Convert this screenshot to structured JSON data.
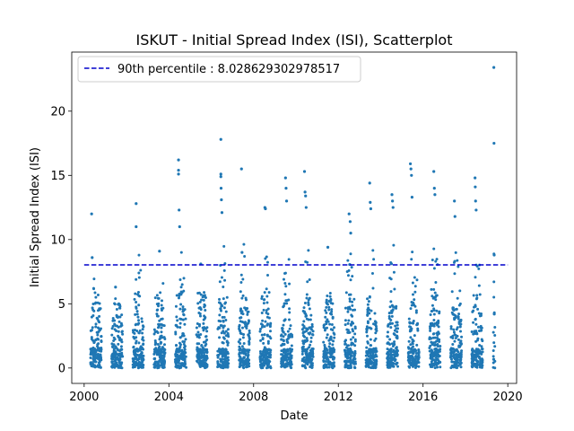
{
  "chart_data": {
    "type": "scatter",
    "title": "ISKUT - Initial Spread Index (ISI), Scatterplot",
    "xlabel": "Date",
    "ylabel": "Initial Spread Index (ISI)",
    "x_range": [
      "1999-06-01",
      "2020-06-01"
    ],
    "y_range": [
      -1.2,
      24.6
    ],
    "x_ticks": [
      {
        "date": "2000-01-01",
        "label": "2000"
      },
      {
        "date": "2004-01-01",
        "label": "2004"
      },
      {
        "date": "2008-01-01",
        "label": "2008"
      },
      {
        "date": "2012-01-01",
        "label": "2012"
      },
      {
        "date": "2016-01-01",
        "label": "2016"
      },
      {
        "date": "2020-01-01",
        "label": "2020"
      }
    ],
    "y_ticks": [
      0,
      5,
      10,
      15,
      20
    ],
    "grid": false,
    "legend_position": "top-left",
    "legend_label": "90th percentile : 8.028629302978517",
    "reference_line": {
      "value": 8.028629302978517,
      "style": "dashed",
      "color": "#0000cc"
    },
    "point_color": "#1f77b4",
    "seasons": [
      {
        "year": 2000,
        "start": "2000-04-20",
        "end": "2000-10-25",
        "max": 12.0,
        "extremes": [
          [
            0.1,
            12.0
          ],
          [
            0.15,
            8.6
          ]
        ]
      },
      {
        "year": 2001,
        "start": "2001-04-20",
        "end": "2001-10-25",
        "max": 6.3,
        "extremes": [
          [
            0.35,
            6.3
          ]
        ]
      },
      {
        "year": 2002,
        "start": "2002-04-20",
        "end": "2002-10-25",
        "max": 12.8,
        "extremes": [
          [
            0.3,
            12.8
          ],
          [
            0.3,
            11.0
          ]
        ]
      },
      {
        "year": 2003,
        "start": "2003-04-20",
        "end": "2003-10-25",
        "max": 9.1,
        "extremes": [
          [
            0.5,
            9.1
          ]
        ]
      },
      {
        "year": 2004,
        "start": "2004-04-20",
        "end": "2004-10-25",
        "max": 16.2,
        "extremes": [
          [
            0.3,
            16.2
          ],
          [
            0.3,
            15.4
          ],
          [
            0.3,
            15.1
          ],
          [
            0.35,
            12.3
          ],
          [
            0.4,
            11.0
          ]
        ]
      },
      {
        "year": 2005,
        "start": "2005-04-20",
        "end": "2005-10-25",
        "max": 8.1,
        "extremes": [
          [
            0.4,
            8.1
          ]
        ]
      },
      {
        "year": 2006,
        "start": "2006-04-20",
        "end": "2006-10-25",
        "max": 17.8,
        "extremes": [
          [
            0.3,
            17.8
          ],
          [
            0.3,
            15.1
          ],
          [
            0.3,
            14.9
          ],
          [
            0.32,
            14.0
          ],
          [
            0.35,
            13.1
          ],
          [
            0.4,
            12.1
          ]
        ]
      },
      {
        "year": 2007,
        "start": "2007-04-20",
        "end": "2007-10-25",
        "max": 15.5,
        "extremes": [
          [
            0.25,
            15.5
          ],
          [
            0.3,
            9.0
          ]
        ]
      },
      {
        "year": 2008,
        "start": "2008-04-20",
        "end": "2008-10-25",
        "max": 12.5,
        "extremes": [
          [
            0.45,
            12.5
          ],
          [
            0.5,
            12.4
          ]
        ]
      },
      {
        "year": 2009,
        "start": "2009-04-20",
        "end": "2009-10-25",
        "max": 14.8,
        "extremes": [
          [
            0.4,
            14.8
          ],
          [
            0.45,
            14.0
          ],
          [
            0.5,
            13.0
          ]
        ]
      },
      {
        "year": 2010,
        "start": "2010-04-20",
        "end": "2010-10-25",
        "max": 15.3,
        "extremes": [
          [
            0.2,
            15.3
          ],
          [
            0.25,
            13.7
          ],
          [
            0.3,
            13.4
          ],
          [
            0.35,
            12.5
          ]
        ]
      },
      {
        "year": 2011,
        "start": "2011-04-20",
        "end": "2011-10-25",
        "max": 9.4,
        "extremes": [
          [
            0.4,
            9.4
          ]
        ]
      },
      {
        "year": 2012,
        "start": "2012-04-20",
        "end": "2012-10-25",
        "max": 12.0,
        "extremes": [
          [
            0.4,
            12.0
          ],
          [
            0.5,
            11.4
          ],
          [
            0.55,
            10.5
          ]
        ]
      },
      {
        "year": 2013,
        "start": "2013-04-20",
        "end": "2013-10-25",
        "max": 14.4,
        "extremes": [
          [
            0.35,
            14.4
          ],
          [
            0.4,
            12.9
          ],
          [
            0.45,
            12.4
          ]
        ]
      },
      {
        "year": 2014,
        "start": "2014-04-20",
        "end": "2014-10-25",
        "max": 13.5,
        "extremes": [
          [
            0.45,
            13.5
          ],
          [
            0.5,
            13.0
          ],
          [
            0.55,
            12.5
          ]
        ]
      },
      {
        "year": 2015,
        "start": "2015-04-20",
        "end": "2015-10-25",
        "max": 15.9,
        "extremes": [
          [
            0.2,
            15.9
          ],
          [
            0.25,
            15.5
          ],
          [
            0.3,
            15.0
          ],
          [
            0.35,
            13.3
          ]
        ]
      },
      {
        "year": 2016,
        "start": "2016-04-20",
        "end": "2016-10-25",
        "max": 15.3,
        "extremes": [
          [
            0.4,
            15.3
          ],
          [
            0.45,
            14.0
          ],
          [
            0.5,
            13.5
          ]
        ]
      },
      {
        "year": 2017,
        "start": "2017-04-20",
        "end": "2017-10-25",
        "max": 13.0,
        "extremes": [
          [
            0.35,
            13.0
          ],
          [
            0.4,
            11.8
          ]
        ]
      },
      {
        "year": 2018,
        "start": "2018-04-20",
        "end": "2018-10-25",
        "max": 14.8,
        "extremes": [
          [
            0.3,
            14.8
          ],
          [
            0.32,
            14.1
          ],
          [
            0.35,
            13.0
          ],
          [
            0.4,
            12.3
          ]
        ]
      },
      {
        "year": 2019,
        "start": "2019-04-25",
        "end": "2019-05-25",
        "max": 23.4,
        "extremes": [
          [
            0.35,
            23.4
          ],
          [
            0.45,
            17.5
          ],
          [
            0.55,
            8.8
          ],
          [
            0.6,
            4.2
          ]
        ]
      }
    ]
  }
}
